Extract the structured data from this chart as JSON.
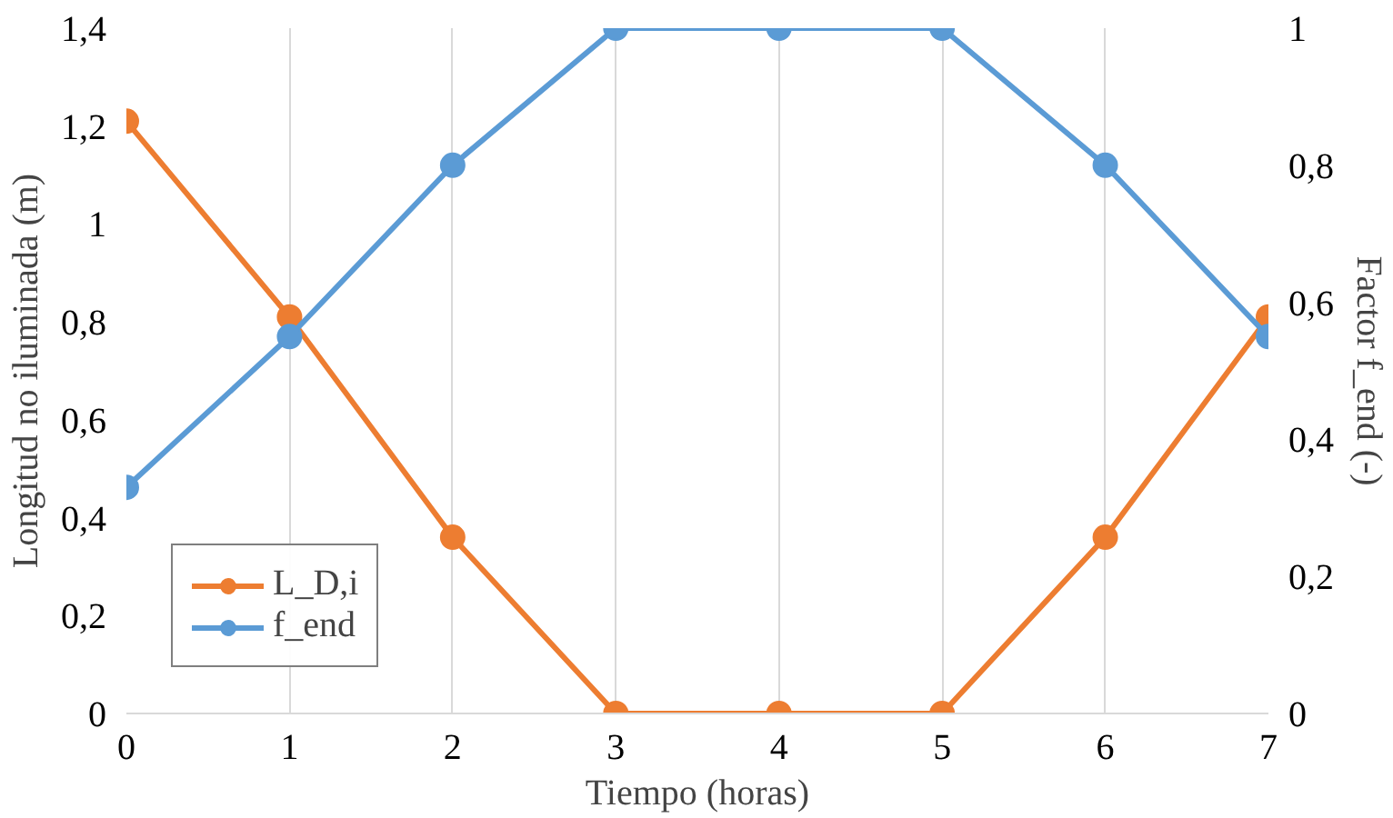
{
  "chart_data": {
    "type": "line",
    "xlabel": "Tiempo (horas)",
    "ylabel": "Longitud no iluminada (m)",
    "y2label": "Factor f_end (-)",
    "x": [
      0,
      1,
      2,
      3,
      4,
      5,
      6,
      7
    ],
    "xlim": [
      0,
      7
    ],
    "xticks": [
      0,
      1,
      2,
      3,
      4,
      5,
      6,
      7
    ],
    "ylim": [
      0,
      1.4
    ],
    "yticks": [
      0,
      {
        "value": 0.2,
        "label": "0,2"
      },
      {
        "value": 0.4,
        "label": "0,4"
      },
      {
        "value": 0.6,
        "label": "0,6"
      },
      {
        "value": 0.8,
        "label": "0,8"
      },
      1,
      {
        "value": 1.2,
        "label": "1,2"
      },
      {
        "value": 1.4,
        "label": "1,4"
      }
    ],
    "y2lim": [
      0,
      1
    ],
    "y2ticks": [
      0,
      {
        "value": 0.2,
        "label": "0,2"
      },
      {
        "value": 0.4,
        "label": "0,4"
      },
      {
        "value": 0.6,
        "label": "0,6"
      },
      {
        "value": 0.8,
        "label": "0,8"
      },
      1
    ],
    "series": [
      {
        "name": "L_D,i",
        "color": "#ed7d31",
        "values": [
          1.21,
          0.81,
          0.36,
          0,
          0,
          0,
          0.36,
          0.81
        ]
      },
      {
        "name": "f_end",
        "color": "#5b9bd5",
        "axis": "y2",
        "values": [
          0.33,
          0.55,
          0.8,
          1,
          1,
          1,
          0.8,
          0.55
        ]
      }
    ],
    "marker": "circle",
    "line_style": "solid",
    "grid": "x",
    "legend": "bottom left"
  }
}
